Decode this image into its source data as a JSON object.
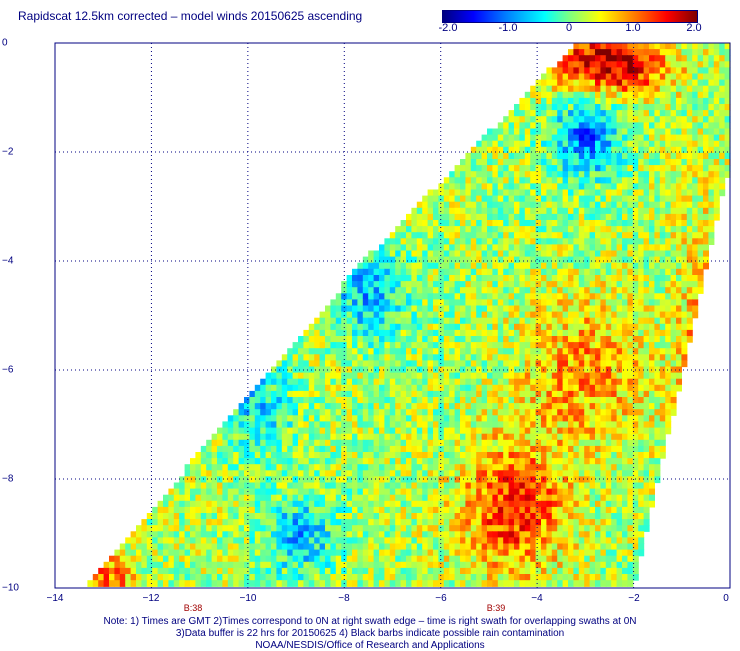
{
  "title": "Rapidscat 12.5km corrected – model winds 20150625 ascending",
  "colorbar": {
    "ticks": [
      "-2.0",
      "-1.0",
      "0",
      "1.0",
      "2.0"
    ],
    "tick_values": [
      -2.0,
      -1.0,
      0,
      1.0,
      2.0
    ],
    "range": [
      -2.0,
      2.0
    ],
    "colors": [
      "#00007f",
      "#0000ff",
      "#007fff",
      "#00ffff",
      "#7fff7f",
      "#ffff00",
      "#ff7f00",
      "#ff0000",
      "#7f0000"
    ]
  },
  "map": {
    "x_ticks": [
      "−14",
      "−12",
      "−10",
      "−8",
      "−6",
      "−4",
      "−2",
      "0"
    ],
    "x_tick_values": [
      -14,
      -12,
      -10,
      -8,
      -6,
      -4,
      -2,
      0
    ],
    "y_ticks": [
      "0",
      "−2",
      "−4",
      "−6",
      "−8",
      "−10"
    ],
    "y_tick_values": [
      0,
      -2,
      -4,
      -6,
      -8,
      -10
    ],
    "lon_range": [
      -14,
      0
    ],
    "lat_range": [
      -10,
      0
    ],
    "grid": "dotted",
    "pass_labels": [
      {
        "text": "B:38",
        "lon": -12.8
      },
      {
        "text": "B:39",
        "lon": -5.0
      }
    ],
    "swath_corners_lonlat": [
      [
        -13.4,
        -10
      ],
      [
        -7.6,
        -4.0
      ],
      [
        -3.2,
        0
      ],
      [
        0,
        0
      ],
      [
        0,
        -2.2
      ],
      [
        -2.0,
        -10
      ]
    ]
  },
  "notes": [
    "Note: 1) Times are GMT 2)Times correspond to 0N at right swath edge – time is right swath for overlapping swaths at 0N",
    "3)Data buffer is 22 hrs for 20150625 4) Black barbs indicate possible rain contamination",
    "NOAA/NESDIS/Office of Research and Applications"
  ]
}
